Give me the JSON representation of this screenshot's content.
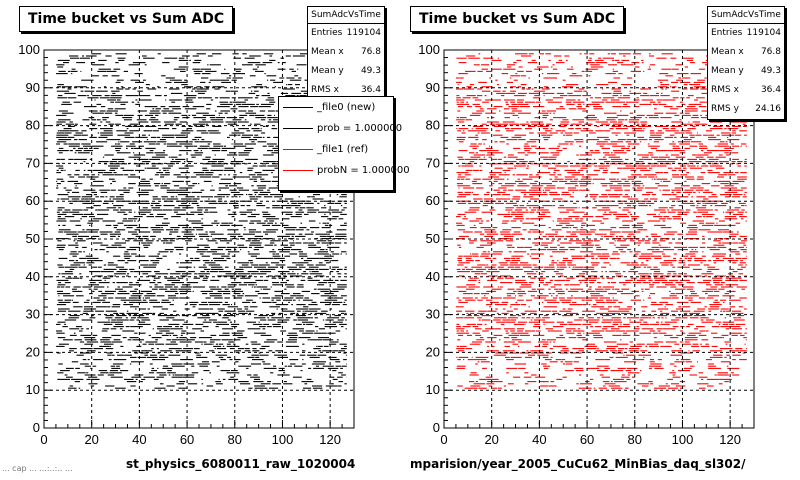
{
  "colors": {
    "left_series": "#000000",
    "right_series": "#ff0000"
  },
  "footer": {
    "text": "... cap ... ...:..:.. ..."
  },
  "chart_data": [
    {
      "type": "scatter",
      "title": "Time bucket vs Sum ADC",
      "xlabel": "st_physics_6080011_raw_1020004",
      "ylabel": "",
      "xlim": [
        0,
        130
      ],
      "ylim": [
        0,
        100
      ],
      "x_ticks": [
        "0",
        "20",
        "40",
        "60",
        "80",
        "100",
        "120"
      ],
      "y_ticks": [
        "0",
        "10",
        "20",
        "30",
        "40",
        "50",
        "60",
        "70",
        "80",
        "90",
        "100"
      ],
      "grid": true,
      "point_x_range": [
        5,
        127
      ],
      "point_y_range": [
        10,
        99
      ],
      "series": [
        {
          "color": "#000000"
        }
      ],
      "stats": {
        "name": "SumAdcVsTime",
        "rows": [
          {
            "label": "Entries",
            "value": "119104"
          },
          {
            "label": "Mean x",
            "value": "76.8"
          },
          {
            "label": "Mean y",
            "value": "49.3"
          },
          {
            "label": "RMS x",
            "value": "36.4"
          }
        ]
      },
      "legend": [
        {
          "label": "_file0 (new)",
          "color": "#000000"
        },
        {
          "label": "prob = 1.000000",
          "color": "#000000"
        },
        {
          "label": "_file1 (ref)",
          "color": "#ff0000"
        },
        {
          "label": "probN = 1.000000",
          "color": "#ff0000"
        }
      ]
    },
    {
      "type": "scatter",
      "title": "Time bucket vs Sum ADC",
      "xlabel": "mparision/year_2005_CuCu62_MinBias_daq_sl302/",
      "ylabel": "",
      "xlim": [
        0,
        130
      ],
      "ylim": [
        0,
        100
      ],
      "x_ticks": [
        "0",
        "20",
        "40",
        "60",
        "80",
        "100",
        "120"
      ],
      "y_ticks": [
        "0",
        "10",
        "20",
        "30",
        "40",
        "50",
        "60",
        "70",
        "80",
        "90",
        "100"
      ],
      "grid": true,
      "point_x_range": [
        5,
        127
      ],
      "point_y_range": [
        10,
        99
      ],
      "series": [
        {
          "color": "#ff0000"
        }
      ],
      "stats": {
        "name": "SumAdcVsTime",
        "rows": [
          {
            "label": "Entries",
            "value": "119104"
          },
          {
            "label": "Mean x",
            "value": "76.8"
          },
          {
            "label": "Mean y",
            "value": "49.3"
          },
          {
            "label": "RMS x",
            "value": "36.4"
          },
          {
            "label": "RMS y",
            "value": "24.16"
          }
        ]
      }
    }
  ]
}
